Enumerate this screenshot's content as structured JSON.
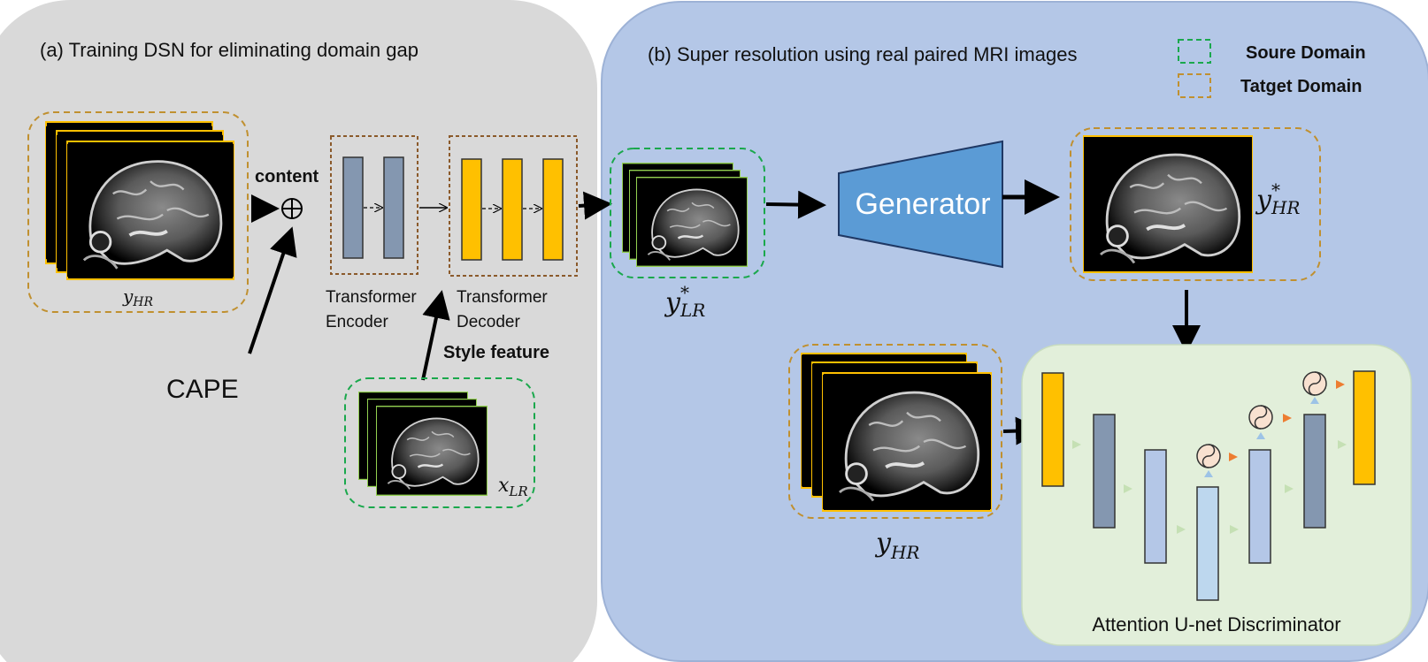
{
  "panel_a": {
    "title": "(a) Training DSN for eliminating domain gap",
    "content_label": "content",
    "cape_label": "CAPE",
    "oplus": "⊕",
    "encoder_label_1": "Transformer",
    "encoder_label_2": "Encoder",
    "decoder_label_1": "Transformer",
    "decoder_label_2": "Decoder",
    "style_feature_label": "Style feature",
    "y_hr_label": "y",
    "y_hr_sub": "HR",
    "x_lr_label": "x",
    "x_lr_sub": "LR"
  },
  "panel_b": {
    "title": "(b) Super resolution using real paired MRI images",
    "generator_label": "Generator",
    "y_lr_star_label": "y",
    "y_lr_star_sup": "*",
    "y_lr_star_sub": "LR",
    "y_hr_star_label": "y",
    "y_hr_star_sup": "*",
    "y_hr_star_sub": "HR",
    "y_hr_label": "y",
    "y_hr_sub": "HR",
    "discriminator_label": "Attention U-net Discriminator"
  },
  "legend": {
    "source": "Soure Domain",
    "target": "Tatget Domain"
  },
  "colors": {
    "panel_a_bg": "#d9d9d9",
    "panel_b_bg": "#b4c7e7",
    "disc_bg": "#e2efda",
    "source_dash": "#1aa84c",
    "target_dash": "#c09030",
    "encoder_block": "#8497b0",
    "decoder_block": "#ffc000",
    "generator": "#5b9bd5",
    "attention_arrow": "#ed7d31"
  }
}
